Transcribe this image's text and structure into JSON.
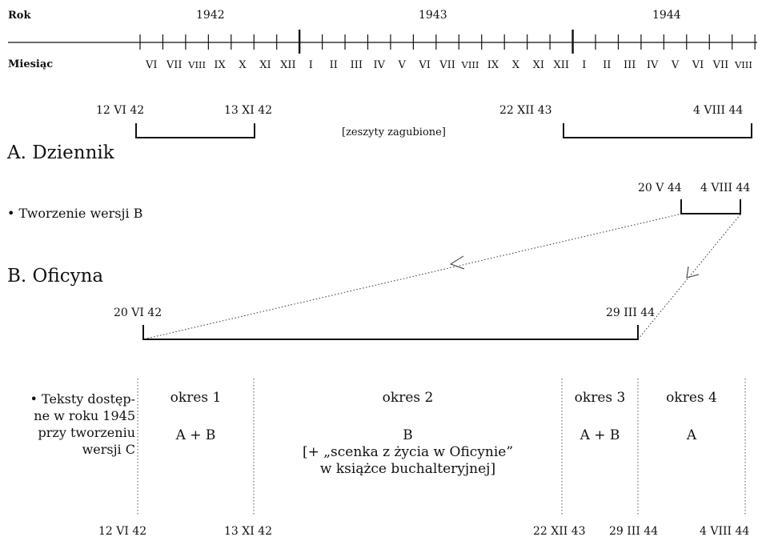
{
  "timeline": {
    "year_label": "Rok",
    "month_label": "Miesiąc",
    "years": [
      "1942",
      "1943",
      "1944"
    ],
    "months": [
      "VI",
      "VII",
      "VIII",
      "IX",
      "X",
      "XI",
      "XII",
      "I",
      "II",
      "III",
      "IV",
      "V",
      "VI",
      "VII",
      "VIII",
      "IX",
      "X",
      "XI",
      "XII",
      "I",
      "II",
      "III",
      "IV",
      "V",
      "VI",
      "VII",
      "VIII"
    ]
  },
  "section_a": {
    "heading": "A. Dziennik",
    "range1_start": "12 VI 42",
    "range1_end": "13 XI 42",
    "gap_note": "[zeszyty zagubione]",
    "range2_start": "22 XII 43",
    "range2_end": "4 VIII 44",
    "creation_label": "• Tworzenie wersji B",
    "creation_start": "20 V 44",
    "creation_end": "4 VIII 44"
  },
  "section_b": {
    "heading": "B. Oficyna",
    "range_start": "20 VI 42",
    "range_end": "29 III 44"
  },
  "availability": {
    "label": [
      "• Teksty dostęp-",
      "ne w roku 1945",
      "przy tworzeniu",
      "wersji C"
    ],
    "periods": [
      {
        "title": "okres 1",
        "content": [
          "A + B"
        ]
      },
      {
        "title": "okres 2",
        "content": [
          "B",
          "[+ „scenka z życia w Oficynie”",
          "w książce buchalteryjnej]"
        ]
      },
      {
        "title": "okres 3",
        "content": [
          "A + B"
        ]
      },
      {
        "title": "okres 4",
        "content": [
          "A"
        ]
      }
    ],
    "boundary_dates": [
      "12 VI 42",
      "13 XI 42",
      "22 XII 43",
      "29 III 44",
      "4 VIII 44"
    ]
  }
}
